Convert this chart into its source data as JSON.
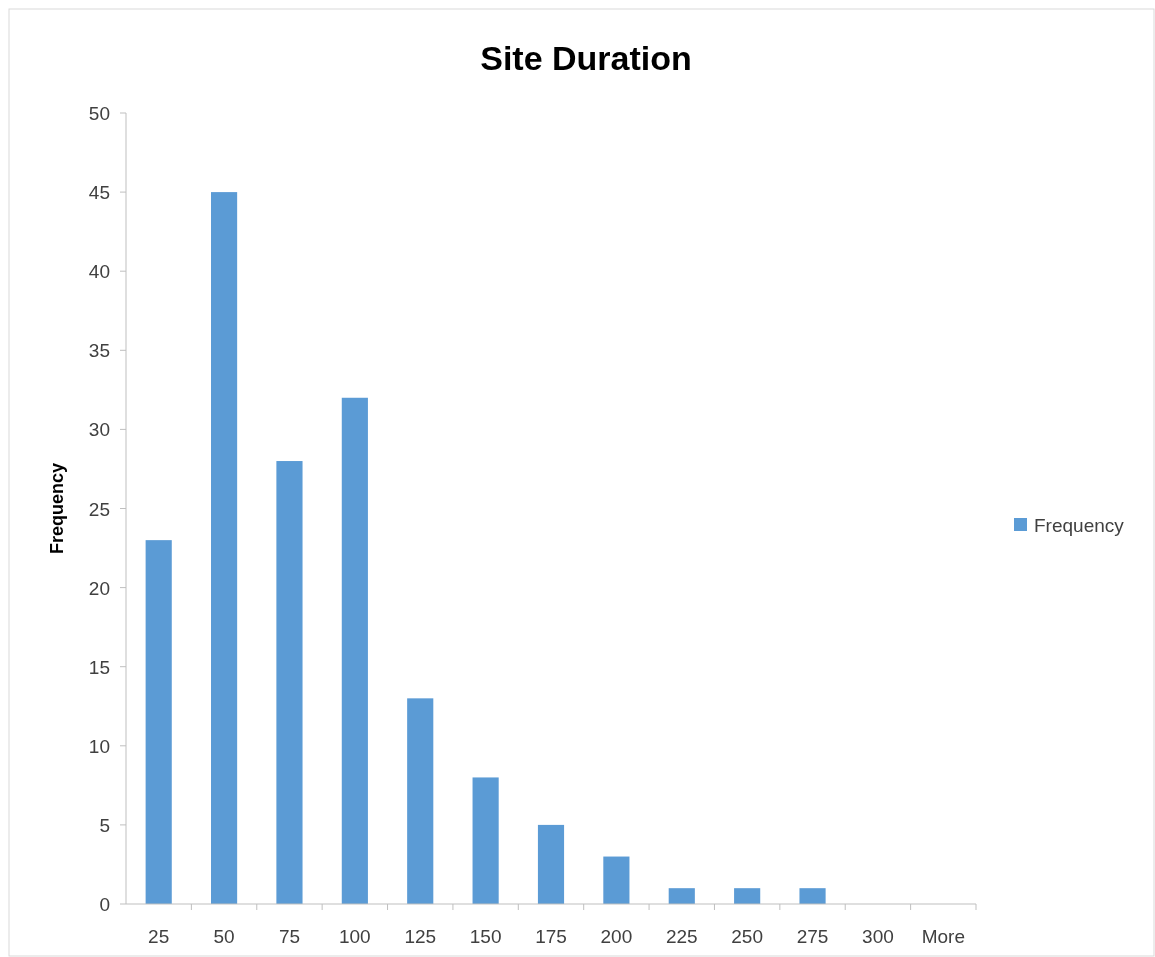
{
  "chart_data": {
    "type": "bar",
    "title": "Site Duration",
    "ylabel": "Frequency",
    "categories": [
      "25",
      "50",
      "75",
      "100",
      "125",
      "150",
      "175",
      "200",
      "225",
      "250",
      "275",
      "300",
      "More"
    ],
    "series": [
      {
        "name": "Frequency",
        "color": "#5b9bd5",
        "values": [
          23,
          45,
          28,
          32,
          13,
          8,
          5,
          3,
          1,
          1,
          1,
          0,
          0
        ]
      }
    ],
    "ylim": [
      0,
      50
    ],
    "yticks": [
      0,
      5,
      10,
      15,
      20,
      25,
      30,
      35,
      40,
      45,
      50
    ],
    "grid": false,
    "legend": "right"
  }
}
